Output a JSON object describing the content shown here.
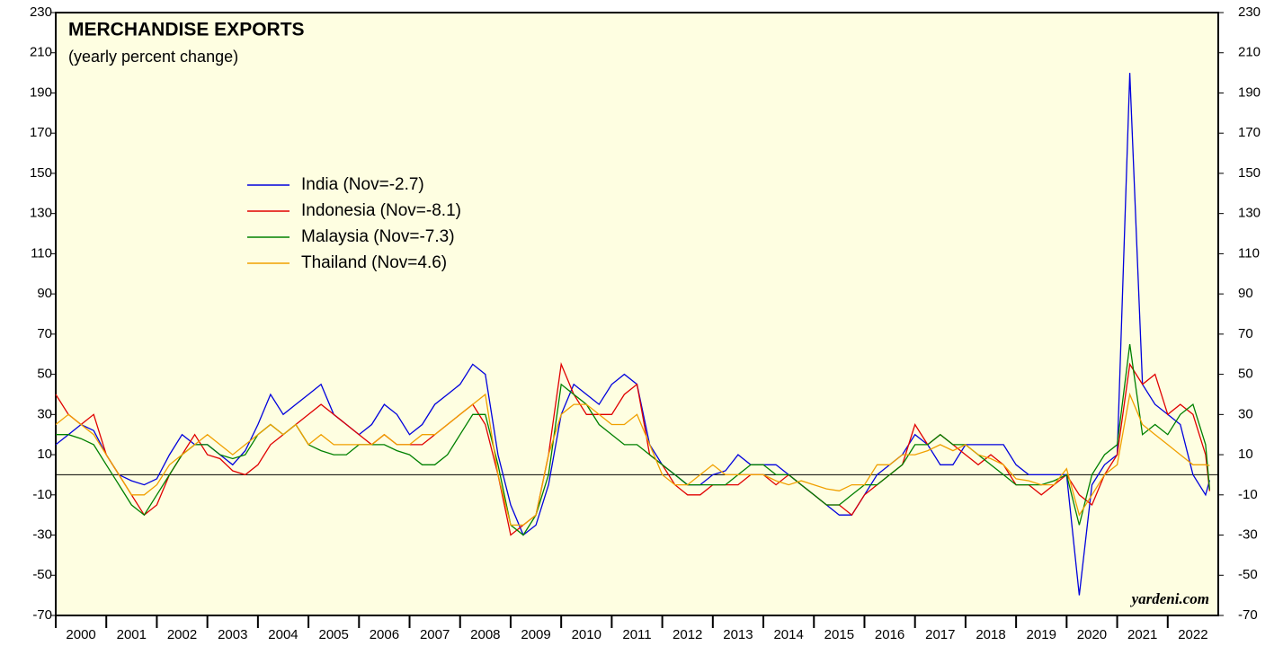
{
  "chart_data": {
    "type": "line",
    "title": "MERCHANDISE EXPORTS",
    "subtitle": "(yearly percent change)",
    "annotation": "yardeni.com",
    "x": [
      2000,
      2000.25,
      2000.5,
      2000.75,
      2001,
      2001.25,
      2001.5,
      2001.75,
      2002,
      2002.25,
      2002.5,
      2002.75,
      2003,
      2003.25,
      2003.5,
      2003.75,
      2004,
      2004.25,
      2004.5,
      2004.75,
      2005,
      2005.25,
      2005.5,
      2005.75,
      2006,
      2006.25,
      2006.5,
      2006.75,
      2007,
      2007.25,
      2007.5,
      2007.75,
      2008,
      2008.25,
      2008.5,
      2008.75,
      2009,
      2009.25,
      2009.5,
      2009.75,
      2010,
      2010.25,
      2010.5,
      2010.75,
      2011,
      2011.25,
      2011.5,
      2011.75,
      2012,
      2012.25,
      2012.5,
      2012.75,
      2013,
      2013.25,
      2013.5,
      2013.75,
      2014,
      2014.25,
      2014.5,
      2014.75,
      2015,
      2015.25,
      2015.5,
      2015.75,
      2016,
      2016.25,
      2016.5,
      2016.75,
      2017,
      2017.25,
      2017.5,
      2017.75,
      2018,
      2018.25,
      2018.5,
      2018.75,
      2019,
      2019.25,
      2019.5,
      2019.75,
      2020,
      2020.25,
      2020.5,
      2020.75,
      2021,
      2021.25,
      2021.5,
      2021.75,
      2022,
      2022.25,
      2022.5,
      2022.75,
      2022.83
    ],
    "series": [
      {
        "name": "India (Nov=-2.7)",
        "color": "#0000dd",
        "values": [
          15,
          20,
          25,
          22,
          10,
          0,
          -3,
          -5,
          -2,
          10,
          20,
          15,
          15,
          10,
          5,
          12,
          25,
          40,
          30,
          35,
          40,
          45,
          30,
          25,
          20,
          25,
          35,
          30,
          20,
          25,
          35,
          40,
          45,
          55,
          50,
          10,
          -15,
          -30,
          -25,
          -5,
          30,
          45,
          40,
          35,
          45,
          50,
          45,
          15,
          5,
          0,
          -5,
          -5,
          0,
          2,
          10,
          5,
          5,
          5,
          0,
          -5,
          -10,
          -15,
          -20,
          -20,
          -10,
          0,
          5,
          10,
          20,
          15,
          5,
          5,
          15,
          15,
          15,
          15,
          5,
          0,
          0,
          0,
          0,
          -60,
          -5,
          5,
          10,
          200,
          45,
          35,
          30,
          25,
          0,
          -10,
          -2.7
        ]
      },
      {
        "name": "Indonesia (Nov=-8.1)",
        "color": "#e00000",
        "values": [
          40,
          30,
          25,
          30,
          10,
          0,
          -10,
          -20,
          -15,
          0,
          10,
          20,
          10,
          8,
          2,
          0,
          5,
          15,
          20,
          25,
          30,
          35,
          30,
          25,
          20,
          15,
          20,
          15,
          15,
          15,
          20,
          25,
          30,
          35,
          25,
          0,
          -30,
          -25,
          -20,
          10,
          55,
          40,
          30,
          30,
          30,
          40,
          45,
          10,
          5,
          -5,
          -10,
          -10,
          -5,
          -5,
          -5,
          0,
          0,
          -5,
          0,
          -5,
          -10,
          -15,
          -15,
          -20,
          -10,
          -5,
          0,
          5,
          25,
          15,
          20,
          15,
          10,
          5,
          10,
          5,
          -5,
          -5,
          -10,
          -5,
          0,
          -10,
          -15,
          0,
          10,
          55,
          45,
          50,
          30,
          35,
          30,
          10,
          -8.1
        ]
      },
      {
        "name": "Malaysia (Nov=-7.3)",
        "color": "#008000",
        "values": [
          20,
          20,
          18,
          15,
          5,
          -5,
          -15,
          -20,
          -10,
          0,
          10,
          15,
          15,
          10,
          8,
          10,
          20,
          25,
          20,
          25,
          15,
          12,
          10,
          10,
          15,
          15,
          15,
          12,
          10,
          5,
          5,
          10,
          20,
          30,
          30,
          5,
          -25,
          -30,
          -20,
          0,
          45,
          40,
          35,
          25,
          20,
          15,
          15,
          10,
          5,
          0,
          -5,
          -5,
          -5,
          -5,
          0,
          5,
          5,
          0,
          0,
          -5,
          -10,
          -15,
          -15,
          -10,
          -5,
          -5,
          0,
          5,
          15,
          15,
          20,
          15,
          15,
          10,
          5,
          0,
          -5,
          -5,
          -5,
          -3,
          0,
          -25,
          0,
          10,
          15,
          65,
          20,
          25,
          20,
          30,
          35,
          15,
          -7.3
        ]
      },
      {
        "name": "Thailand (Nov=4.6)",
        "color": "#f0a000",
        "values": [
          25,
          30,
          25,
          20,
          10,
          0,
          -10,
          -10,
          -5,
          5,
          10,
          15,
          20,
          15,
          10,
          15,
          20,
          25,
          20,
          25,
          15,
          20,
          15,
          15,
          15,
          15,
          20,
          15,
          15,
          20,
          20,
          25,
          30,
          35,
          40,
          0,
          -25,
          -25,
          -20,
          10,
          30,
          35,
          35,
          30,
          25,
          25,
          30,
          15,
          0,
          -5,
          -5,
          0,
          5,
          0,
          0,
          0,
          0,
          -3,
          -5,
          -3,
          -5,
          -7,
          -8,
          -5,
          -5,
          5,
          5,
          10,
          10,
          12,
          15,
          12,
          15,
          10,
          8,
          5,
          -2,
          -3,
          -5,
          -5,
          3,
          -20,
          -10,
          0,
          5,
          40,
          25,
          20,
          15,
          10,
          5,
          5,
          4.6
        ]
      }
    ],
    "xlim": [
      2000,
      2023
    ],
    "xticks": [
      2000,
      2001,
      2002,
      2003,
      2004,
      2005,
      2006,
      2007,
      2008,
      2009,
      2010,
      2011,
      2012,
      2013,
      2014,
      2015,
      2016,
      2017,
      2018,
      2019,
      2020,
      2021,
      2022
    ],
    "ylim": [
      -70,
      230
    ],
    "yticks": [
      -70,
      -50,
      -30,
      -10,
      10,
      30,
      50,
      70,
      90,
      110,
      130,
      150,
      170,
      190,
      210,
      230
    ],
    "legend": "upper-left"
  }
}
